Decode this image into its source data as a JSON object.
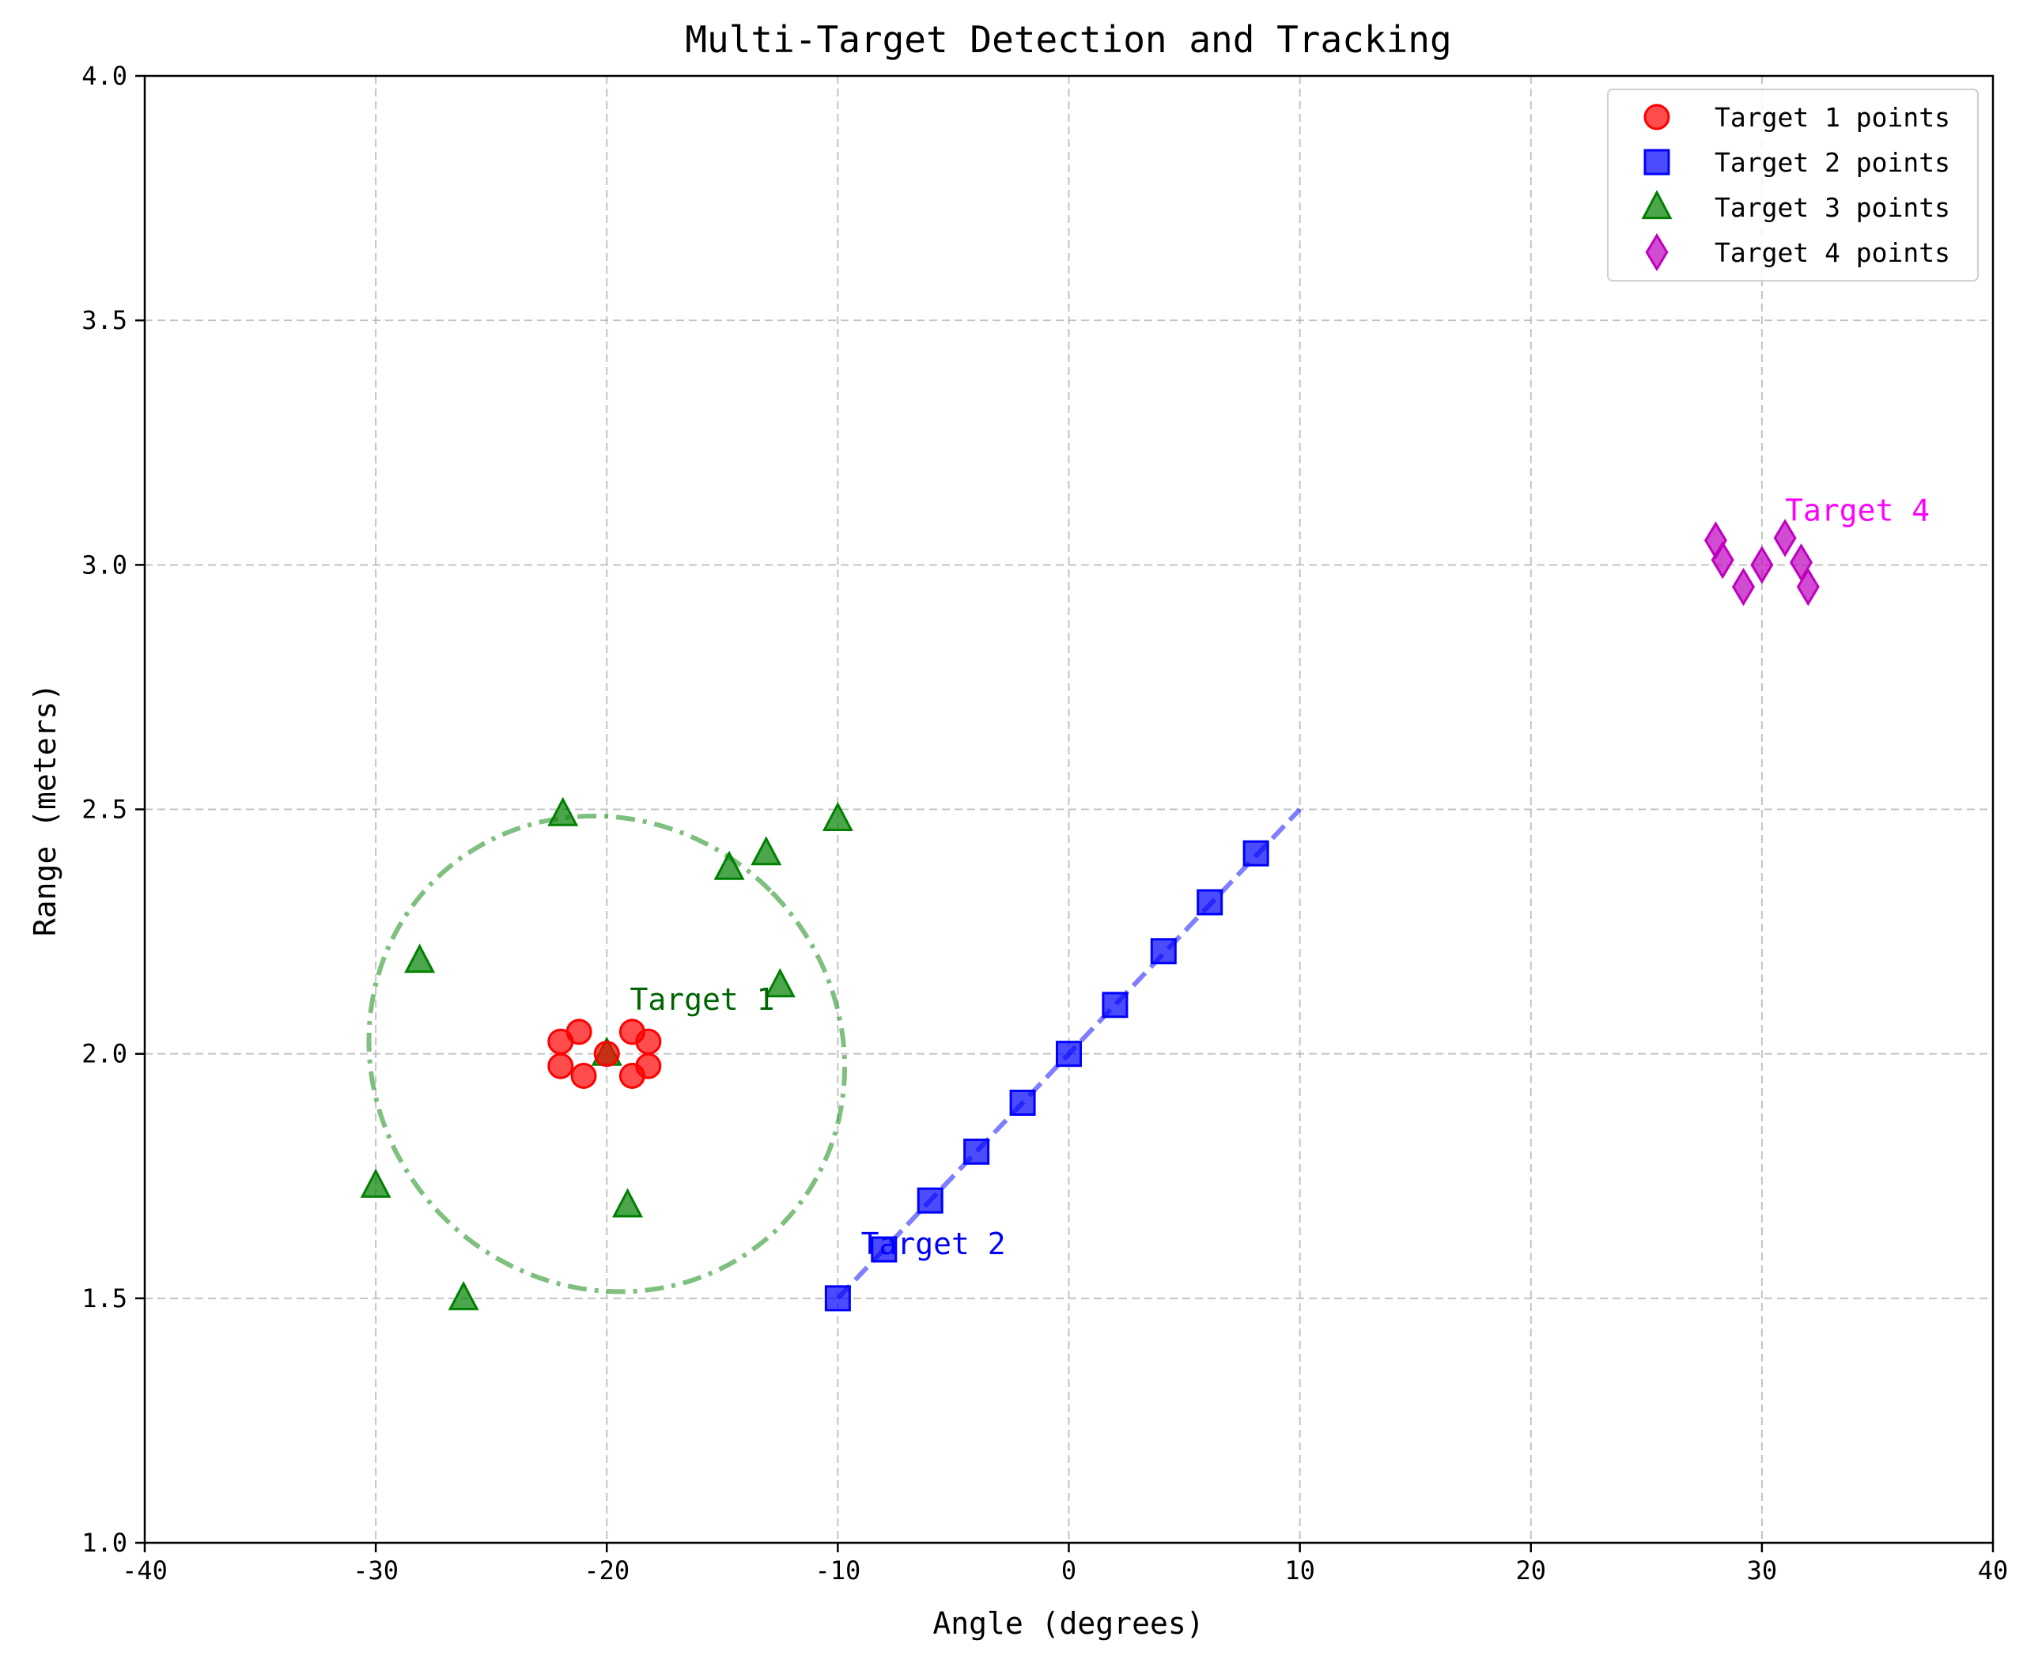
{
  "chart_data": {
    "type": "scatter",
    "title": "Multi-Target Detection and Tracking",
    "xlabel": "Angle (degrees)",
    "ylabel": "Range (meters)",
    "xlim": [
      -40,
      40
    ],
    "ylim": [
      1.0,
      4.0
    ],
    "xticks": [
      "-40",
      "-30",
      "-20",
      "-10",
      "0",
      "10",
      "20",
      "30",
      "40"
    ],
    "yticks": [
      "1.0",
      "1.5",
      "2.0",
      "2.5",
      "3.0",
      "3.5",
      "4.0"
    ],
    "grid": true,
    "legend_position": "top-right",
    "series": [
      {
        "name": "Target 1 points",
        "marker": "circle",
        "color": "#ff0000",
        "points": [
          {
            "x": -22.0,
            "y": 2.025
          },
          {
            "x": -21.2,
            "y": 2.045
          },
          {
            "x": -22.0,
            "y": 1.975
          },
          {
            "x": -21.0,
            "y": 1.955
          },
          {
            "x": -20.0,
            "y": 2.0
          },
          {
            "x": -18.9,
            "y": 2.045
          },
          {
            "x": -18.2,
            "y": 2.025
          },
          {
            "x": -18.2,
            "y": 1.975
          },
          {
            "x": -18.9,
            "y": 1.955
          }
        ]
      },
      {
        "name": "Target 2 points",
        "marker": "square",
        "color": "#0000ff",
        "points": [
          {
            "x": -10.0,
            "y": 1.5
          },
          {
            "x": -8.0,
            "y": 1.6
          },
          {
            "x": -6.0,
            "y": 1.7
          },
          {
            "x": -4.0,
            "y": 1.8
          },
          {
            "x": -2.0,
            "y": 1.9
          },
          {
            "x": 0.0,
            "y": 2.0
          },
          {
            "x": 2.0,
            "y": 2.1
          },
          {
            "x": 4.1,
            "y": 2.21
          },
          {
            "x": 6.1,
            "y": 2.31
          },
          {
            "x": 8.1,
            "y": 2.41
          }
        ]
      },
      {
        "name": "Target 3 points",
        "marker": "triangle",
        "color": "#008000",
        "points": [
          {
            "x": -30.0,
            "y": 1.73
          },
          {
            "x": -28.1,
            "y": 2.19
          },
          {
            "x": -21.9,
            "y": 2.49
          },
          {
            "x": -26.2,
            "y": 1.5
          },
          {
            "x": -20.0,
            "y": 2.0
          },
          {
            "x": -19.1,
            "y": 1.69
          },
          {
            "x": -14.7,
            "y": 2.38
          },
          {
            "x": -13.1,
            "y": 2.41
          },
          {
            "x": -12.5,
            "y": 2.14
          },
          {
            "x": -10.0,
            "y": 2.48
          }
        ]
      },
      {
        "name": "Target 4 points",
        "marker": "diamond",
        "color": "#bf00bf",
        "points": [
          {
            "x": 28.0,
            "y": 3.05
          },
          {
            "x": 28.3,
            "y": 3.01
          },
          {
            "x": 29.2,
            "y": 2.955
          },
          {
            "x": 30.0,
            "y": 3.0
          },
          {
            "x": 31.0,
            "y": 3.055
          },
          {
            "x": 31.7,
            "y": 3.005
          },
          {
            "x": 32.0,
            "y": 2.955
          }
        ]
      }
    ],
    "tracks": [
      {
        "series": "Target 2 points",
        "style": "dashed",
        "color": "#0000ff",
        "from": [
          -10,
          1.5
        ],
        "to": [
          10,
          2.5
        ]
      },
      {
        "series": "Target 3 points",
        "style": "dashdot",
        "color": "#008000",
        "center": [
          -20,
          2.0
        ],
        "half_width_deg": 10,
        "half_height_range": 0.5,
        "tilt_deg": 45
      }
    ],
    "annotations": [
      {
        "text": "Target 1",
        "x": -19.0,
        "y": 2.09,
        "color": "#006400"
      },
      {
        "text": "Target 2",
        "x": -9.0,
        "y": 1.59,
        "color": "#0000ff"
      },
      {
        "text": "Target 4",
        "x": 31.0,
        "y": 3.09,
        "color": "#ff00ff"
      }
    ]
  }
}
